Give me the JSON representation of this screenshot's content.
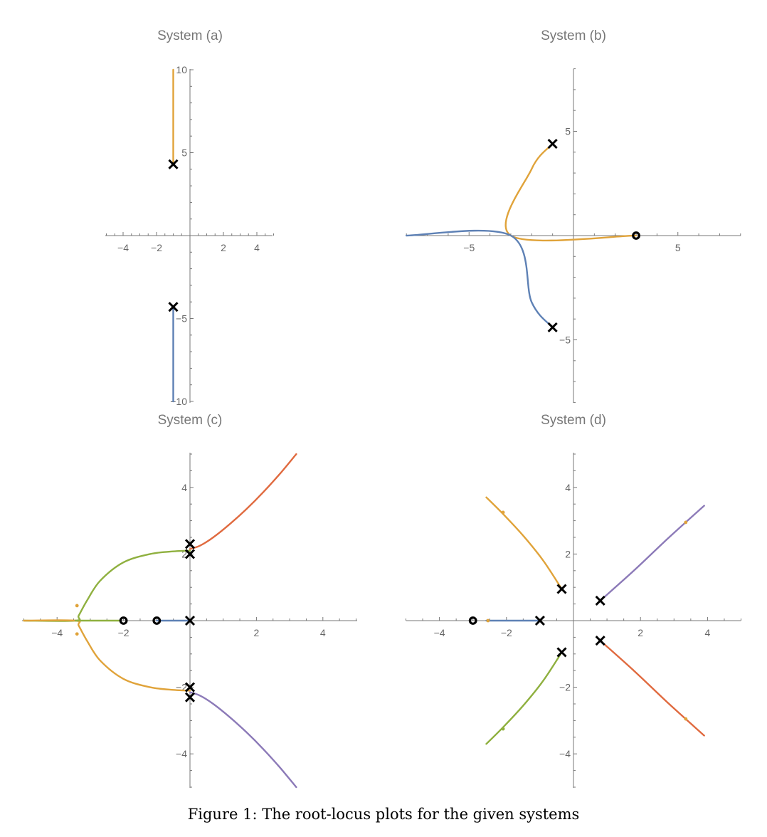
{
  "caption": "Figure 1: The root-locus plots for the given systems",
  "colors": {
    "orange": "#E0A33A",
    "blue": "#5E81B5",
    "green": "#8FB03F",
    "red": "#E06A3F",
    "purple": "#8C7AB8",
    "axis": "#777777",
    "marker": "#000000"
  },
  "chart_data": [
    {
      "type": "line",
      "title": "System (a)",
      "xlim": [
        -5,
        5
      ],
      "ylim": [
        -10,
        10
      ],
      "xticks": [
        -4,
        -2,
        2,
        4
      ],
      "yticks": [
        -10,
        -5,
        5,
        10
      ],
      "grid": false,
      "poles": [
        [
          -1,
          4.3
        ],
        [
          -1,
          -4.3
        ]
      ],
      "zeros": [],
      "branches": [
        {
          "color": "orange",
          "points": [
            [
              -1,
              4.3
            ],
            [
              -1,
              10
            ]
          ]
        },
        {
          "color": "blue",
          "points": [
            [
              -1,
              -4.3
            ],
            [
              -1,
              -10
            ]
          ]
        }
      ]
    },
    {
      "type": "line",
      "title": "System (b)",
      "xlim": [
        -8,
        8
      ],
      "ylim": [
        -8,
        8
      ],
      "xticks": [
        -5,
        5
      ],
      "yticks": [
        -5,
        5
      ],
      "grid": false,
      "poles": [
        [
          -1,
          4.4
        ],
        [
          -1,
          -4.4
        ]
      ],
      "zeros": [
        [
          3,
          0
        ]
      ],
      "branches": [
        {
          "color": "orange",
          "points": [
            [
              -1,
              4.4
            ],
            [
              -2,
              3.2
            ],
            [
              -3,
              0
            ],
            [
              3,
              0
            ]
          ]
        },
        {
          "color": "blue",
          "points": [
            [
              -1,
              -4.4
            ],
            [
              -2,
              -3.2
            ],
            [
              -3,
              0
            ],
            [
              -8,
              0
            ]
          ]
        }
      ]
    },
    {
      "type": "line",
      "title": "System (c)",
      "xlim": [
        -5,
        5
      ],
      "ylim": [
        -5,
        5
      ],
      "xticks": [
        -4,
        -2,
        2,
        4
      ],
      "yticks": [
        -4,
        -2,
        2,
        4
      ],
      "grid": false,
      "poles": [
        [
          0,
          2.3
        ],
        [
          0,
          2.0
        ],
        [
          0,
          0
        ],
        [
          0,
          -2.0
        ],
        [
          0,
          -2.3
        ]
      ],
      "zeros": [
        [
          -2,
          0
        ],
        [
          -1,
          0
        ]
      ],
      "branches": [
        {
          "color": "red",
          "points": [
            [
              0,
              2.15
            ],
            [
              0.3,
              2.25
            ],
            [
              0.7,
              2.5
            ],
            [
              1.2,
              2.9
            ],
            [
              1.7,
              3.35
            ],
            [
              2.2,
              3.85
            ],
            [
              2.7,
              4.4
            ],
            [
              3.2,
              5.0
            ]
          ]
        },
        {
          "color": "purple",
          "points": [
            [
              0,
              -2.15
            ],
            [
              0.3,
              -2.25
            ],
            [
              0.7,
              -2.5
            ],
            [
              1.2,
              -2.9
            ],
            [
              1.7,
              -3.35
            ],
            [
              2.2,
              -3.85
            ],
            [
              2.7,
              -4.4
            ],
            [
              3.2,
              -5.0
            ]
          ]
        },
        {
          "color": "green",
          "points": [
            [
              0,
              2.1
            ],
            [
              -0.5,
              2.08
            ],
            [
              -1.2,
              2.0
            ],
            [
              -2.0,
              1.75
            ],
            [
              -2.7,
              1.2
            ],
            [
              -3.1,
              0.6
            ],
            [
              -3.35,
              0.15
            ],
            [
              -3.45,
              0
            ],
            [
              -5.0,
              0
            ]
          ]
        },
        {
          "color": "orange",
          "points": [
            [
              0,
              -2.1
            ],
            [
              -0.5,
              -2.08
            ],
            [
              -1.2,
              -2.0
            ],
            [
              -2.0,
              -1.75
            ],
            [
              -2.7,
              -1.2
            ],
            [
              -3.1,
              -0.6
            ],
            [
              -3.35,
              -0.15
            ],
            [
              -3.45,
              0
            ],
            [
              -5.0,
              0
            ]
          ]
        },
        {
          "color": "blue",
          "points": [
            [
              0,
              0
            ],
            [
              -1,
              0
            ]
          ]
        },
        {
          "color": "green",
          "points": [
            [
              -3.45,
              0
            ],
            [
              -2.1,
              0
            ]
          ]
        }
      ],
      "dots": [
        {
          "color": "orange",
          "point": [
            -3.4,
            0.45
          ]
        },
        {
          "color": "orange",
          "point": [
            -3.4,
            -0.4
          ]
        }
      ]
    },
    {
      "type": "line",
      "title": "System (d)",
      "xlim": [
        -5,
        5
      ],
      "ylim": [
        -5,
        5
      ],
      "xticks": [
        -4,
        -2,
        2,
        4
      ],
      "yticks": [
        -4,
        -2,
        2,
        4
      ],
      "grid": false,
      "poles": [
        [
          -0.35,
          0.95
        ],
        [
          -0.35,
          -0.95
        ],
        [
          0.8,
          0.6
        ],
        [
          0.8,
          -0.6
        ],
        [
          -1,
          0
        ]
      ],
      "zeros": [
        [
          -3,
          0
        ]
      ],
      "branches": [
        {
          "color": "orange",
          "points": [
            [
              -0.35,
              0.95
            ],
            [
              -0.9,
              1.8
            ],
            [
              -1.5,
              2.55
            ],
            [
              -2.1,
              3.2
            ],
            [
              -2.6,
              3.7
            ]
          ]
        },
        {
          "color": "green",
          "points": [
            [
              -0.35,
              -0.95
            ],
            [
              -0.9,
              -1.8
            ],
            [
              -1.5,
              -2.55
            ],
            [
              -2.1,
              -3.2
            ],
            [
              -2.6,
              -3.7
            ]
          ]
        },
        {
          "color": "purple",
          "points": [
            [
              0.8,
              0.6
            ],
            [
              1.8,
              1.5
            ],
            [
              2.8,
              2.45
            ],
            [
              3.9,
              3.45
            ]
          ]
        },
        {
          "color": "red",
          "points": [
            [
              0.8,
              -0.6
            ],
            [
              1.8,
              -1.5
            ],
            [
              2.8,
              -2.45
            ],
            [
              3.9,
              -3.45
            ]
          ]
        },
        {
          "color": "blue",
          "points": [
            [
              -1,
              0
            ],
            [
              -2.6,
              0
            ]
          ]
        }
      ],
      "dots": [
        {
          "color": "orange",
          "point": [
            -2.1,
            3.25
          ]
        },
        {
          "color": "green",
          "point": [
            -2.1,
            -3.25
          ]
        },
        {
          "color": "orange",
          "point": [
            3.35,
            2.95
          ]
        },
        {
          "color": "orange",
          "point": [
            3.35,
            -2.95
          ]
        },
        {
          "color": "orange",
          "point": [
            -2.55,
            0
          ]
        }
      ]
    }
  ]
}
